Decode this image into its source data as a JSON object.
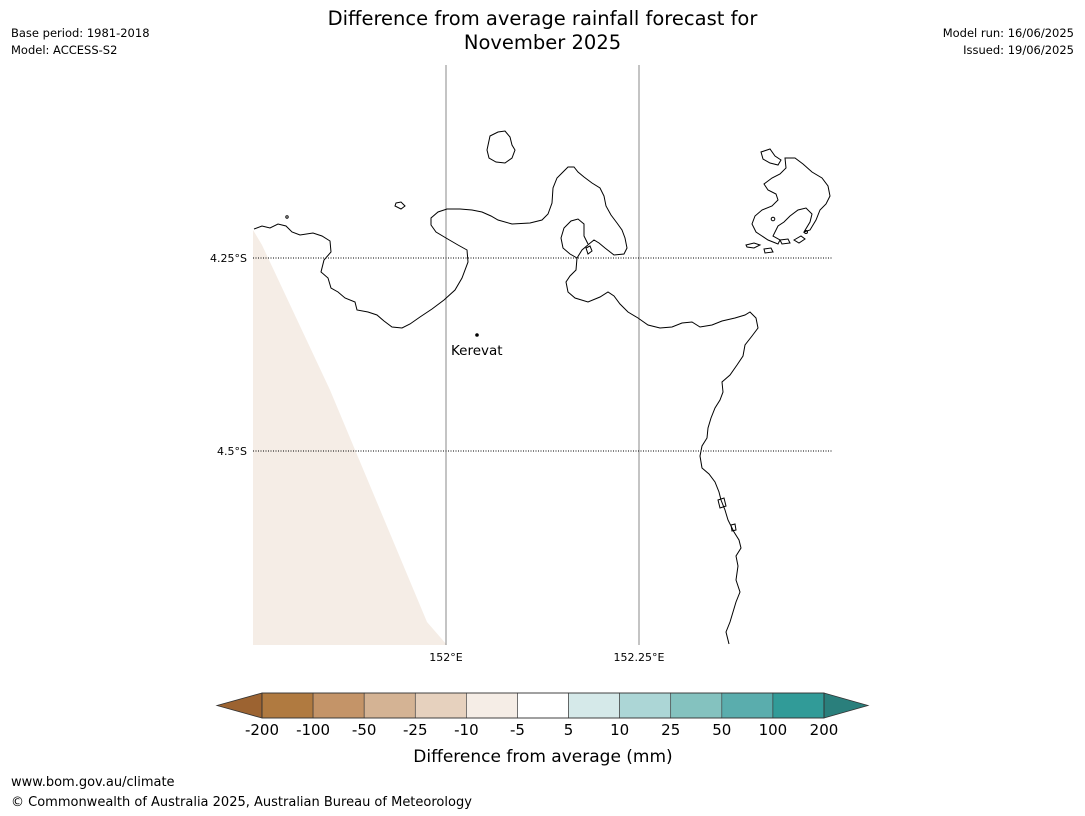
{
  "header": {
    "title_line1": "Difference from average rainfall forecast for",
    "title_line2": "November 2025",
    "base_period": "Base period: 1981-2018",
    "model": "Model: ACCESS-S2",
    "model_run": "Model run: 16/06/2025",
    "issued": "Issued: 19/06/2025"
  },
  "map": {
    "lat_labels": [
      "4.25°S",
      "4.5°S"
    ],
    "lon_labels": [
      "152°E",
      "152.25°E"
    ],
    "place": {
      "name": "Kerevat"
    },
    "colors": {
      "coastline": "#000000",
      "shading": "#f5ede6"
    }
  },
  "colorbar": {
    "title": "Difference from average (mm)",
    "tick_labels": [
      "-200",
      "-100",
      "-50",
      "-25",
      "-10",
      "-5",
      "5",
      "10",
      "25",
      "50",
      "100",
      "200"
    ],
    "colors": [
      "#9c6331",
      "#b07a40",
      "#c49468",
      "#d4b394",
      "#e6d1be",
      "#f5ede6",
      "#ffffff",
      "#d5e9e9",
      "#acd6d6",
      "#84c2bf",
      "#5aadad",
      "#319b98",
      "#2a7f7c"
    ]
  },
  "footer": {
    "url": "www.bom.gov.au/climate",
    "copyright": "© Commonwealth of Australia 2025, Australian Bureau of Meteorology"
  }
}
